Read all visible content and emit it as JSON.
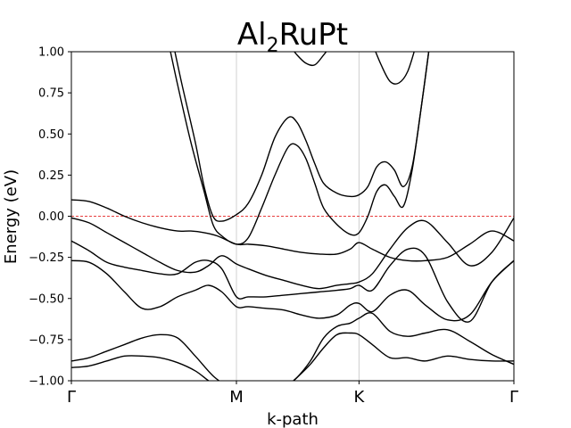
{
  "chart_data": {
    "type": "line",
    "title": "Al2RuPt",
    "title_parts": {
      "base1": "Al",
      "sub": "2",
      "base2": "RuPt"
    },
    "xlabel": "k-path",
    "ylabel": "Energy (eV)",
    "ylim": [
      -1.0,
      1.0
    ],
    "xlim": [
      0,
      1
    ],
    "y_tick_labels": [
      "1.00",
      "0.75",
      "0.50",
      "0.25",
      "0.00",
      "−0.25",
      "−0.50",
      "−0.75",
      "−1.00"
    ],
    "y_ticks": [
      1.0,
      0.75,
      0.5,
      0.25,
      0.0,
      -0.25,
      -0.5,
      -0.75,
      -1.0
    ],
    "kpoints": [
      {
        "label": "Γ",
        "x": 0.0
      },
      {
        "label": "M",
        "x": 0.373
      },
      {
        "label": "K",
        "x": 0.65
      },
      {
        "label": "Γ",
        "x": 1.0
      }
    ],
    "fermi_level": 0.0,
    "grid": "vertical lines at high-symmetry k-points",
    "series": [
      {
        "x": [
          0.0,
          0.04,
          0.08,
          0.12,
          0.16,
          0.2,
          0.24,
          0.27,
          0.3,
          0.33,
          0.373,
          0.4,
          0.44,
          0.48,
          0.52,
          0.56,
          0.6,
          0.63,
          0.65,
          0.68,
          0.72,
          0.76,
          0.8,
          0.85,
          0.9,
          0.95,
          1.0
        ],
        "y": [
          0.1,
          0.09,
          0.05,
          0.0,
          -0.04,
          -0.07,
          -0.09,
          -0.09,
          -0.1,
          -0.12,
          -0.17,
          -0.17,
          -0.18,
          -0.2,
          -0.22,
          -0.23,
          -0.23,
          -0.2,
          -0.16,
          -0.2,
          -0.25,
          -0.27,
          -0.27,
          -0.25,
          -0.17,
          -0.09,
          -0.15
        ]
      },
      {
        "x": [
          0.0,
          0.04,
          0.08,
          0.12,
          0.16,
          0.2,
          0.24,
          0.28,
          0.31,
          0.34,
          0.373,
          0.4,
          0.44,
          0.48,
          0.52,
          0.56,
          0.6,
          0.63,
          0.65,
          0.68,
          0.72,
          0.76,
          0.8,
          0.85,
          0.9,
          0.95,
          1.0
        ],
        "y": [
          -0.01,
          -0.04,
          -0.1,
          -0.16,
          -0.22,
          -0.28,
          -0.33,
          -0.34,
          -0.3,
          -0.24,
          -0.29,
          -0.32,
          -0.36,
          -0.39,
          -0.42,
          -0.44,
          -0.42,
          -0.41,
          -0.4,
          -0.35,
          -0.2,
          -0.07,
          -0.03,
          -0.16,
          -0.3,
          -0.22,
          -0.01
        ]
      },
      {
        "x": [
          0.0,
          0.04,
          0.08,
          0.12,
          0.16,
          0.2,
          0.24,
          0.28,
          0.31,
          0.34,
          0.373,
          0.4,
          0.44,
          0.48,
          0.52,
          0.56,
          0.6,
          0.63,
          0.65,
          0.68,
          0.72,
          0.76,
          0.8,
          0.85,
          0.9,
          0.95,
          1.0
        ],
        "y": [
          -0.15,
          -0.21,
          -0.28,
          -0.31,
          -0.33,
          -0.35,
          -0.35,
          -0.28,
          -0.27,
          -0.32,
          -0.49,
          -0.49,
          -0.49,
          -0.48,
          -0.47,
          -0.46,
          -0.45,
          -0.44,
          -0.42,
          -0.45,
          -0.3,
          -0.2,
          -0.24,
          -0.52,
          -0.64,
          -0.4,
          -0.27
        ]
      },
      {
        "x": [
          0.0,
          0.04,
          0.08,
          0.12,
          0.16,
          0.2,
          0.24,
          0.28,
          0.31,
          0.34,
          0.373,
          0.4,
          0.44,
          0.48,
          0.52,
          0.56,
          0.6,
          0.63,
          0.65,
          0.68,
          0.72,
          0.76,
          0.8,
          0.85,
          0.9,
          0.95,
          1.0
        ],
        "y": [
          -0.27,
          -0.28,
          -0.35,
          -0.46,
          -0.56,
          -0.55,
          -0.49,
          -0.45,
          -0.42,
          -0.46,
          -0.55,
          -0.55,
          -0.56,
          -0.57,
          -0.6,
          -0.62,
          -0.6,
          -0.54,
          -0.53,
          -0.58,
          -0.48,
          -0.45,
          -0.54,
          -0.63,
          -0.6,
          -0.4,
          -0.27
        ]
      },
      {
        "x": [
          0.0,
          0.04,
          0.08,
          0.12,
          0.16,
          0.2,
          0.24,
          0.28,
          0.32,
          0.36
        ],
        "y": [
          -0.88,
          -0.86,
          -0.82,
          -0.78,
          -0.74,
          -0.72,
          -0.74,
          -0.85,
          -0.97,
          -1.05
        ]
      },
      {
        "x": [
          0.0,
          0.04,
          0.08,
          0.12,
          0.16,
          0.2,
          0.24,
          0.28,
          0.31,
          0.34
        ],
        "y": [
          -0.92,
          -0.91,
          -0.88,
          -0.85,
          -0.85,
          -0.86,
          -0.89,
          -0.94,
          -1.0,
          -1.05
        ]
      },
      {
        "x": [
          0.48,
          0.51,
          0.54,
          0.57,
          0.6,
          0.63,
          0.65,
          0.68,
          0.72,
          0.76,
          0.8,
          0.85,
          0.9,
          0.95,
          1.0
        ],
        "y": [
          -1.05,
          -0.98,
          -0.9,
          -0.8,
          -0.72,
          -0.71,
          -0.72,
          -0.78,
          -0.86,
          -0.86,
          -0.88,
          -0.85,
          -0.87,
          -0.88,
          -0.88
        ]
      },
      {
        "x": [
          0.48,
          0.51,
          0.54,
          0.57,
          0.6,
          0.63,
          0.65,
          0.68,
          0.72,
          0.76,
          0.8,
          0.85,
          0.9,
          0.95,
          1.0
        ],
        "y": [
          -1.05,
          -0.98,
          -0.88,
          -0.74,
          -0.67,
          -0.65,
          -0.62,
          -0.59,
          -0.7,
          -0.73,
          -0.71,
          -0.69,
          -0.76,
          -0.84,
          -0.9
        ]
      },
      {
        "x": [
          0.23,
          0.25,
          0.28,
          0.3,
          0.32,
          0.34,
          0.373,
          0.4,
          0.43,
          0.46,
          0.49,
          0.51,
          0.53,
          0.55,
          0.57,
          0.6,
          0.63,
          0.65,
          0.67,
          0.69,
          0.71,
          0.73,
          0.75,
          0.77,
          0.79,
          0.81
        ],
        "y": [
          1.05,
          0.8,
          0.45,
          0.18,
          0.0,
          -0.03,
          0.01,
          0.08,
          0.25,
          0.48,
          0.6,
          0.57,
          0.46,
          0.32,
          0.2,
          0.14,
          0.12,
          0.13,
          0.18,
          0.3,
          0.33,
          0.28,
          0.18,
          0.3,
          0.65,
          1.05
        ]
      },
      {
        "x": [
          0.22,
          0.24,
          0.27,
          0.3,
          0.32,
          0.34,
          0.373,
          0.4,
          0.43,
          0.46,
          0.49,
          0.51,
          0.53,
          0.55,
          0.57,
          0.6,
          0.63,
          0.65,
          0.67,
          0.69,
          0.71,
          0.73,
          0.75,
          0.77,
          0.79,
          0.81
        ],
        "y": [
          1.05,
          0.8,
          0.45,
          0.15,
          -0.05,
          -0.12,
          -0.17,
          -0.13,
          0.05,
          0.25,
          0.42,
          0.43,
          0.35,
          0.2,
          0.05,
          -0.05,
          -0.11,
          -0.1,
          0.0,
          0.15,
          0.19,
          0.12,
          0.06,
          0.28,
          0.65,
          1.05
        ]
      },
      {
        "x": [
          0.49,
          0.51,
          0.53,
          0.55,
          0.57,
          0.59
        ],
        "y": [
          1.05,
          0.98,
          0.93,
          0.92,
          0.98,
          1.05
        ]
      },
      {
        "x": [
          0.68,
          0.7,
          0.72,
          0.74,
          0.76,
          0.78
        ],
        "y": [
          1.05,
          0.92,
          0.82,
          0.81,
          0.88,
          1.05
        ]
      }
    ]
  }
}
